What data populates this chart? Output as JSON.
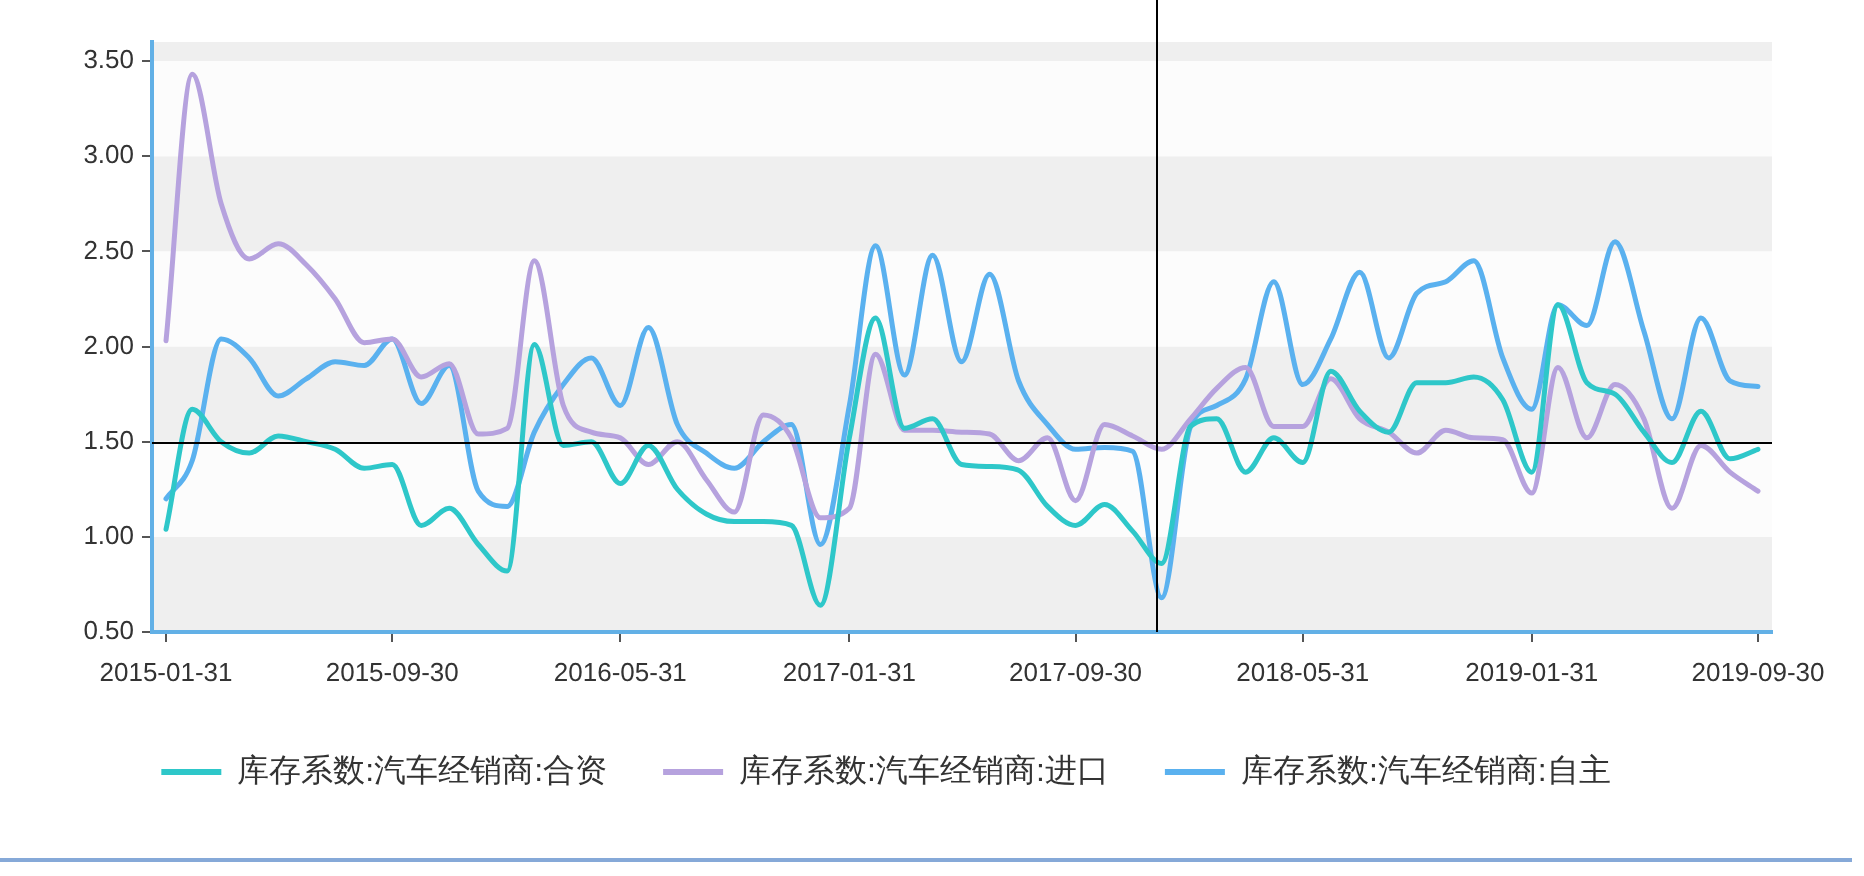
{
  "chart_data": {
    "type": "line",
    "x": [
      "2015-01-31",
      "2015-02-28",
      "2015-03-31",
      "2015-04-30",
      "2015-05-31",
      "2015-06-30",
      "2015-07-31",
      "2015-08-31",
      "2015-09-30",
      "2015-10-31",
      "2015-11-30",
      "2015-12-31",
      "2016-01-31",
      "2016-02-29",
      "2016-03-31",
      "2016-04-30",
      "2016-05-31",
      "2016-06-30",
      "2016-07-31",
      "2016-08-31",
      "2016-09-30",
      "2016-10-31",
      "2016-11-30",
      "2016-12-31",
      "2017-01-31",
      "2017-02-28",
      "2017-03-31",
      "2017-04-30",
      "2017-05-31",
      "2017-06-30",
      "2017-07-31",
      "2017-08-31",
      "2017-09-30",
      "2017-10-31",
      "2017-11-30",
      "2017-12-31",
      "2018-01-31",
      "2018-02-28",
      "2018-03-31",
      "2018-04-30",
      "2018-05-31",
      "2018-06-30",
      "2018-07-31",
      "2018-08-31",
      "2018-09-30",
      "2018-10-31",
      "2018-11-30",
      "2018-12-31",
      "2019-01-31",
      "2019-02-28",
      "2019-03-31",
      "2019-04-30",
      "2019-05-31",
      "2019-06-30",
      "2019-07-31",
      "2019-08-31",
      "2019-09-30"
    ],
    "xlim": [
      "2015-01-16",
      "2019-10-15"
    ],
    "xticks": [
      "2015-01-31",
      "2015-09-30",
      "2016-05-31",
      "2017-01-31",
      "2017-09-30",
      "2018-05-31",
      "2019-01-31",
      "2019-09-30"
    ],
    "ylim": [
      0.5,
      3.6
    ],
    "yticks": [
      {
        "value": 0.5,
        "label": "0.50"
      },
      {
        "value": 1,
        "label": "1.00"
      },
      {
        "value": 1.5,
        "label": "1.50"
      },
      {
        "value": 2,
        "label": "2.00"
      },
      {
        "value": 2.5,
        "label": "2.50"
      },
      {
        "value": 3,
        "label": "3.00"
      },
      {
        "value": 3.5,
        "label": "3.50"
      }
    ],
    "legend": "bottom",
    "marker": "none",
    "line_style": "solid",
    "series": [
      {
        "name": "库存系数:汽车经销商:合资",
        "color": "#2ec7c9",
        "values": [
          1.04,
          1.67,
          1.5,
          1.44,
          1.53,
          1.5,
          1.46,
          1.36,
          1.38,
          1.06,
          1.15,
          0.96,
          0.82,
          2.01,
          1.48,
          1.5,
          1.28,
          1.48,
          1.25,
          1.12,
          1.08,
          1.08,
          1.06,
          0.64,
          1.52,
          2.15,
          1.57,
          1.62,
          1.38,
          1.37,
          1.35,
          1.16,
          1.06,
          1.17,
          1.03,
          0.86,
          1.58,
          1.62,
          1.34,
          1.52,
          1.39,
          1.87,
          1.66,
          1.55,
          1.81,
          1.81,
          1.84,
          1.72,
          1.34,
          2.22,
          1.81,
          1.75,
          1.55,
          1.39,
          1.66,
          1.41,
          1.46
        ]
      },
      {
        "name": "库存系数:汽车经销商:进口",
        "color": "#b6a2de",
        "values": [
          2.03,
          3.43,
          2.75,
          2.46,
          2.54,
          2.43,
          2.25,
          2.02,
          2.04,
          1.84,
          1.91,
          1.54,
          1.57,
          2.45,
          1.69,
          1.55,
          1.52,
          1.38,
          1.5,
          1.3,
          1.13,
          1.64,
          1.52,
          1.1,
          1.15,
          1.96,
          1.56,
          1.56,
          1.55,
          1.54,
          1.4,
          1.52,
          1.19,
          1.59,
          1.53,
          1.46,
          1.62,
          1.78,
          1.89,
          1.58,
          1.58,
          1.83,
          1.62,
          1.55,
          1.44,
          1.56,
          1.52,
          1.51,
          1.23,
          1.89,
          1.52,
          1.8,
          1.62,
          1.15,
          1.48,
          1.34,
          1.24
        ]
      },
      {
        "name": "库存系数:汽车经销商:自主",
        "color": "#5ab1ef",
        "values": [
          1.2,
          1.4,
          2.04,
          1.94,
          1.74,
          1.83,
          1.92,
          1.9,
          2.04,
          1.7,
          1.9,
          1.24,
          1.16,
          1.55,
          1.8,
          1.94,
          1.69,
          2.1,
          1.59,
          1.44,
          1.36,
          1.5,
          1.59,
          0.96,
          1.69,
          2.53,
          1.85,
          2.48,
          1.92,
          2.38,
          1.82,
          1.59,
          1.46,
          1.47,
          1.45,
          0.68,
          1.58,
          1.69,
          1.83,
          2.34,
          1.8,
          2.04,
          2.39,
          1.94,
          2.28,
          2.34,
          2.45,
          1.94,
          1.67,
          2.22,
          2.11,
          2.55,
          2.08,
          1.62,
          2.15,
          1.82,
          1.79
        ]
      }
    ],
    "ref_lines": [
      {
        "axis": "x",
        "value": "2017-12-24",
        "color": "#000000"
      },
      {
        "axis": "y",
        "value": 1.5,
        "color": "#000000"
      }
    ]
  }
}
